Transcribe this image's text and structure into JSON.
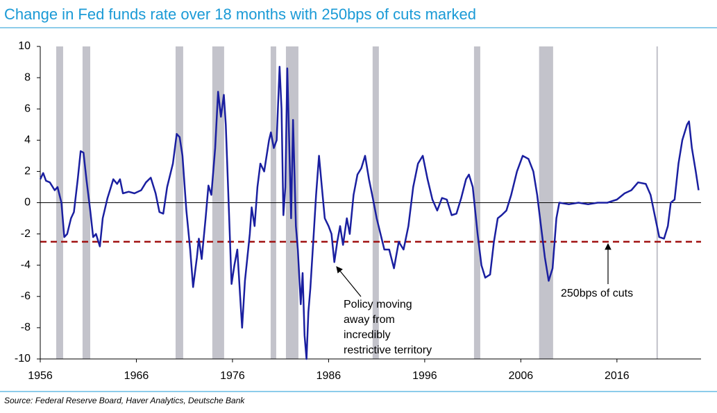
{
  "chart_data": {
    "type": "line",
    "title": "Change in Fed funds rate over 18 months with 250bps of cuts marked",
    "source": "Source: Federal Reserve Board, Haver Analytics, Deutsche Bank",
    "xlim": [
      1956,
      2024.75
    ],
    "xticks": [
      1956,
      1966,
      1976,
      1986,
      1996,
      2006,
      2016
    ],
    "ylim": [
      -10,
      10
    ],
    "yticks": [
      -10,
      -8,
      -6,
      -4,
      -2,
      0,
      2,
      4,
      6,
      8,
      10
    ],
    "recessions": [
      [
        1957.66,
        1958.38
      ],
      [
        1960.4,
        1961.2
      ],
      [
        1970.08,
        1970.87
      ],
      [
        1973.9,
        1975.13
      ],
      [
        1979.97,
        1980.55
      ],
      [
        1981.56,
        1982.86
      ],
      [
        1990.58,
        1991.23
      ],
      [
        2001.13,
        2001.78
      ],
      [
        2007.9,
        2009.36
      ],
      [
        2020.11,
        2020.26
      ]
    ],
    "recession_color": "#c3c3cb",
    "reference_line": -2.5,
    "reference_color": "#a01010",
    "annotations": [
      {
        "lines": [
          "250bps of cuts"
        ]
      },
      {
        "lines": [
          "Policy moving",
          "away from",
          "incredibly",
          "restrictive territory"
        ]
      }
    ],
    "series": [
      {
        "name": "Change in Fed funds rate over 18 months",
        "color": "#1a1fa0",
        "x": [
          1956.0,
          1956.3,
          1956.6,
          1957.0,
          1957.5,
          1957.8,
          1958.2,
          1958.5,
          1958.8,
          1959.2,
          1959.5,
          1959.9,
          1960.2,
          1960.5,
          1960.8,
          1961.2,
          1961.5,
          1961.8,
          1962.2,
          1962.5,
          1963.0,
          1963.3,
          1963.6,
          1964.0,
          1964.3,
          1964.6,
          1965.2,
          1965.8,
          1966.5,
          1967.0,
          1967.5,
          1968.0,
          1968.4,
          1968.8,
          1969.2,
          1969.8,
          1970.2,
          1970.5,
          1970.8,
          1971.2,
          1971.6,
          1971.9,
          1972.3,
          1972.5,
          1972.8,
          1973.2,
          1973.5,
          1973.8,
          1974.2,
          1974.5,
          1974.8,
          1975.1,
          1975.3,
          1975.6,
          1975.9,
          1976.2,
          1976.5,
          1976.8,
          1977.0,
          1977.3,
          1977.8,
          1978.0,
          1978.3,
          1978.6,
          1978.9,
          1979.3,
          1979.8,
          1980.0,
          1980.3,
          1980.6,
          1980.9,
          1981.1,
          1981.3,
          1981.5,
          1981.7,
          1981.9,
          1982.1,
          1982.3,
          1982.6,
          1982.8,
          1983.1,
          1983.3,
          1983.5,
          1983.7,
          1983.9,
          1984.1,
          1984.4,
          1984.7,
          1985.0,
          1985.3,
          1985.6,
          1986.0,
          1986.3,
          1986.6,
          1986.9,
          1987.2,
          1987.5,
          1987.9,
          1988.2,
          1988.6,
          1989.0,
          1989.4,
          1989.8,
          1990.2,
          1990.6,
          1991.0,
          1991.4,
          1991.8,
          1992.3,
          1992.8,
          1993.3,
          1993.8,
          1994.3,
          1994.8,
          1995.3,
          1995.8,
          1996.3,
          1996.8,
          1997.3,
          1997.8,
          1998.3,
          1998.8,
          1999.3,
          1999.8,
          2000.3,
          2000.6,
          2001.0,
          2001.5,
          2001.9,
          2002.3,
          2002.8,
          2003.2,
          2003.6,
          2004.0,
          2004.5,
          2005.0,
          2005.6,
          2006.2,
          2006.8,
          2007.3,
          2007.7,
          2008.1,
          2008.5,
          2008.9,
          2009.3,
          2009.7,
          2010.0,
          2011.0,
          2012.0,
          2013.0,
          2014.0,
          2015.0,
          2016.0,
          2016.8,
          2017.5,
          2018.2,
          2019.0,
          2019.5,
          2020.0,
          2020.4,
          2020.9,
          2021.3,
          2021.6,
          2022.0,
          2022.4,
          2022.8,
          2023.3,
          2023.5,
          2023.8,
          2024.2,
          2024.5
        ],
        "values": [
          1.5,
          1.9,
          1.4,
          1.3,
          0.8,
          1.0,
          0.0,
          -2.2,
          -2.0,
          -1.0,
          -0.6,
          1.5,
          3.3,
          3.2,
          1.5,
          -0.5,
          -2.2,
          -2.0,
          -2.8,
          -1.0,
          0.3,
          0.9,
          1.5,
          1.2,
          1.5,
          0.6,
          0.7,
          0.6,
          0.8,
          1.3,
          1.6,
          0.6,
          -0.6,
          -0.7,
          1.0,
          2.5,
          4.4,
          4.2,
          3.0,
          -0.5,
          -3.0,
          -5.4,
          -3.5,
          -2.3,
          -3.6,
          -1.0,
          1.1,
          0.5,
          3.5,
          7.1,
          5.5,
          6.9,
          5.0,
          0.0,
          -5.2,
          -4.0,
          -3.0,
          -6.0,
          -8.0,
          -5.0,
          -2.0,
          -0.3,
          -1.5,
          1.0,
          2.5,
          2.0,
          4.0,
          4.5,
          3.5,
          4.0,
          8.7,
          6.0,
          -0.8,
          1.0,
          8.6,
          4.0,
          -1.0,
          5.3,
          -1.5,
          -3.0,
          -6.5,
          -4.5,
          -8.5,
          -10.0,
          -7.0,
          -5.5,
          -2.5,
          0.5,
          3.0,
          1.0,
          -1.0,
          -1.5,
          -2.0,
          -3.8,
          -2.5,
          -1.5,
          -2.7,
          -1.0,
          -2.0,
          0.5,
          1.8,
          2.2,
          3.0,
          1.5,
          0.3,
          -1.0,
          -2.0,
          -3.0,
          -3.0,
          -4.2,
          -2.5,
          -3.0,
          -1.5,
          1.0,
          2.5,
          3.0,
          1.5,
          0.2,
          -0.5,
          0.3,
          0.2,
          -0.8,
          -0.7,
          0.3,
          1.5,
          1.8,
          1.0,
          -2.0,
          -4.0,
          -4.8,
          -4.6,
          -2.5,
          -1.0,
          -0.8,
          -0.5,
          0.5,
          2.0,
          3.0,
          2.8,
          2.0,
          0.5,
          -1.5,
          -3.5,
          -5.0,
          -4.2,
          -1.0,
          0.0,
          -0.1,
          0.0,
          -0.1,
          0.0,
          0.0,
          0.2,
          0.6,
          0.8,
          1.3,
          1.2,
          0.5,
          -1.0,
          -2.2,
          -2.3,
          -1.5,
          0.0,
          0.2,
          2.5,
          4.0,
          5.0,
          5.2,
          3.5,
          2.0,
          0.8
        ]
      }
    ]
  }
}
